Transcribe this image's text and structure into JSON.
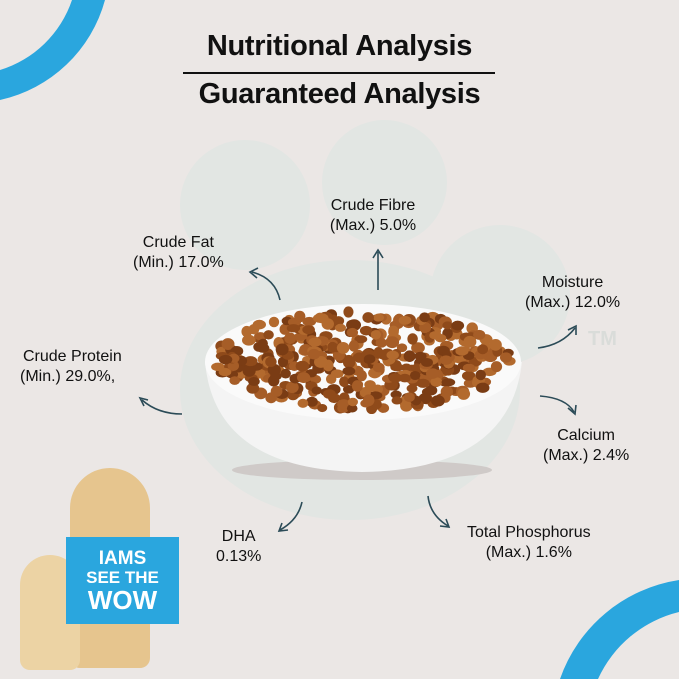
{
  "header": {
    "title_line1": "Nutritional Analysis",
    "title_line2": "Guaranteed Analysis"
  },
  "nutrients": [
    {
      "name": "Crude Fibre",
      "value": "(Max.) 5.0%"
    },
    {
      "name": "Crude Fat",
      "value": "(Min.) 17.0%"
    },
    {
      "name": "Moisture",
      "value": "(Max.) 12.0%"
    },
    {
      "name": "Crude Protein",
      "value": "(Min.) 29.0%,"
    },
    {
      "name": "Calcium",
      "value": "(Max.) 2.4%"
    },
    {
      "name": "DHA",
      "value": "0.13%"
    },
    {
      "name": "Total Phosphorus",
      "value": "(Max.) 1.6%"
    }
  ],
  "brand_sign": {
    "line1": "IAMS",
    "line2": "SEE THE",
    "line3": "WOW"
  },
  "trademark": "TM",
  "colors": {
    "accent_blue": "#2aa6de",
    "background": "#ebe7e5",
    "kibble": "#9a5320"
  }
}
